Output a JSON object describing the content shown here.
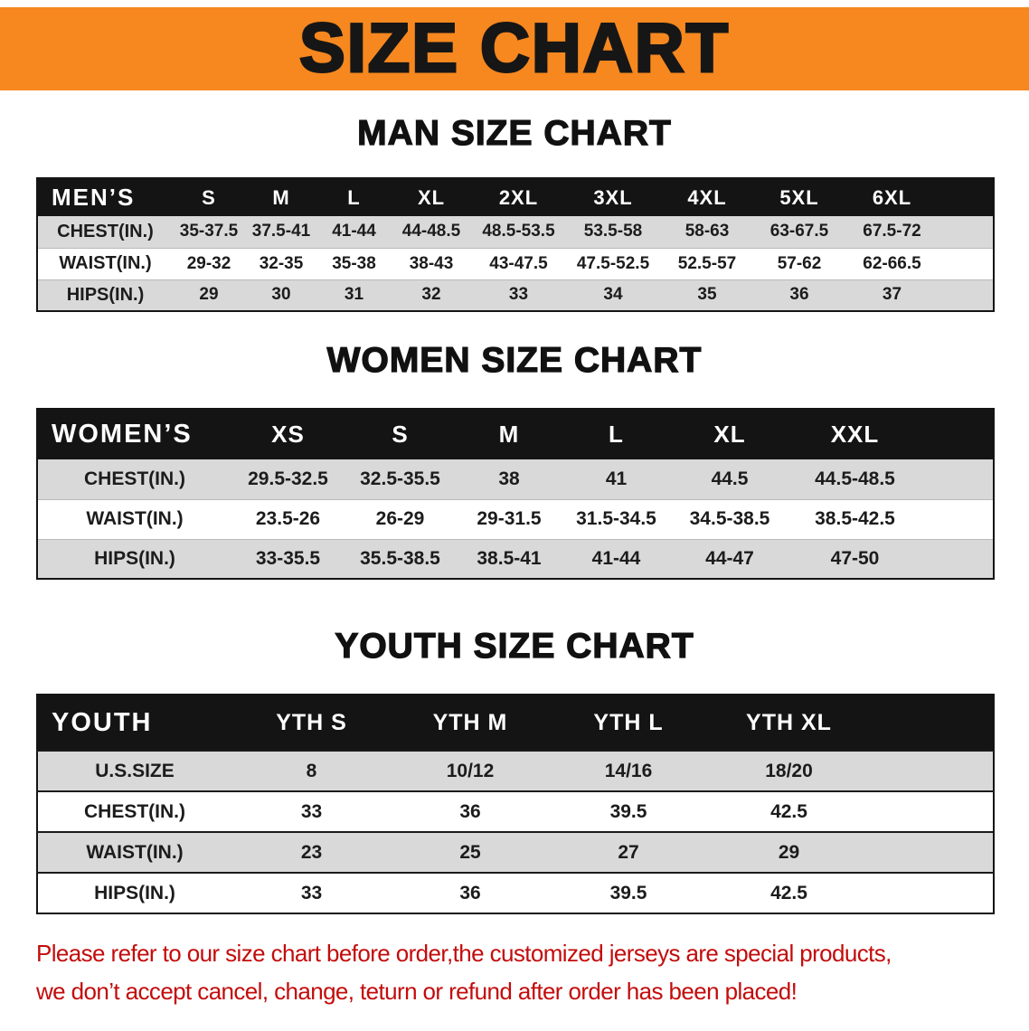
{
  "banner": {
    "title": "SIZE CHART"
  },
  "sections": [
    {
      "heading": "MAN SIZE CHART",
      "table": {
        "header": [
          "MEN’S",
          "S",
          "M",
          "L",
          "XL",
          "2XL",
          "3XL",
          "4XL",
          "5XL",
          "6XL"
        ],
        "rows": [
          [
            "CHEST(IN.)",
            "35-37.5",
            "37.5-41",
            "41-44",
            "44-48.5",
            "48.5-53.5",
            "53.5-58",
            "58-63",
            "63-67.5",
            "67.5-72"
          ],
          [
            "WAIST(IN.)",
            "29-32",
            "32-35",
            "35-38",
            "38-43",
            "43-47.5",
            "47.5-52.5",
            "52.5-57",
            "57-62",
            "62-66.5"
          ],
          [
            "HIPS(IN.)",
            "29",
            "30",
            "31",
            "32",
            "33",
            "34",
            "35",
            "36",
            "37"
          ]
        ]
      }
    },
    {
      "heading": "WOMEN SIZE CHART",
      "table": {
        "header": [
          "WOMEN’S",
          "XS",
          "S",
          "M",
          "L",
          "XL",
          "XXL"
        ],
        "rows": [
          [
            "CHEST(IN.)",
            "29.5-32.5",
            "32.5-35.5",
            "38",
            "41",
            "44.5",
            "44.5-48.5"
          ],
          [
            "WAIST(IN.)",
            "23.5-26",
            "26-29",
            "29-31.5",
            "31.5-34.5",
            "34.5-38.5",
            "38.5-42.5"
          ],
          [
            "HIPS(IN.)",
            "33-35.5",
            "35.5-38.5",
            "38.5-41",
            "41-44",
            "44-47",
            "47-50"
          ]
        ]
      }
    },
    {
      "heading": "YOUTH SIZE CHART",
      "table": {
        "header": [
          "YOUTH",
          "YTH S",
          "YTH M",
          "YTH L",
          "YTH XL"
        ],
        "rows": [
          [
            "U.S.SIZE",
            "8",
            "10/12",
            "14/16",
            "18/20"
          ],
          [
            "CHEST(IN.)",
            "33",
            "36",
            "39.5",
            "42.5"
          ],
          [
            "WAIST(IN.)",
            "23",
            "25",
            "27",
            "29"
          ],
          [
            "HIPS(IN.)",
            "33",
            "36",
            "39.5",
            "42.5"
          ]
        ]
      }
    }
  ],
  "disclaimer": {
    "lines": [
      "Please refer to our size chart before order,the customized jerseys are special products,",
      "we don’t accept cancel, change, teturn or refund after order has been placed!"
    ]
  },
  "colors": {
    "banner_orange": "#F6881F",
    "header_black": "#141414",
    "row_gray": "#D9D9D9",
    "disclaimer_red": "#C30C0C"
  }
}
